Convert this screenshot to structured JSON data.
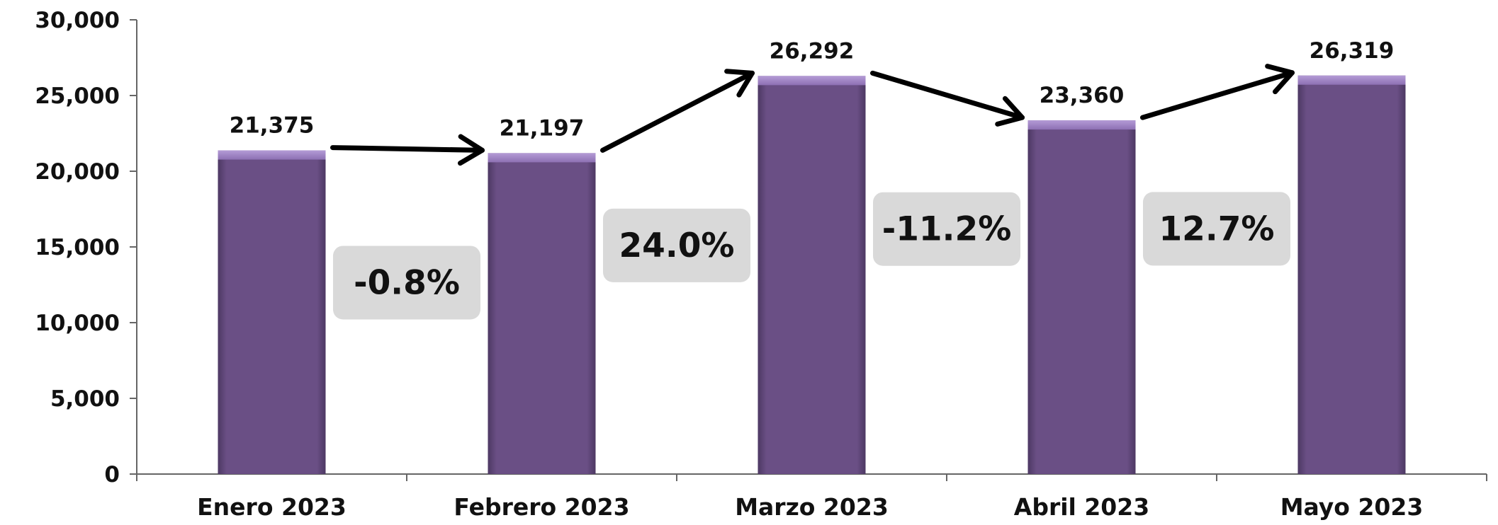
{
  "chart_data": {
    "type": "bar",
    "categories": [
      "Enero 2023",
      "Febrero 2023",
      "Marzo 2023",
      "Abril 2023",
      "Mayo 2023"
    ],
    "values": [
      21375,
      21197,
      26292,
      23360,
      26319
    ],
    "value_labels": [
      "21,375",
      "21,197",
      "26,292",
      "23,360",
      "26,319"
    ],
    "changes": [
      "-0.8%",
      "24.0%",
      "-11.2%",
      "12.7%"
    ],
    "yticks": [
      0,
      5000,
      10000,
      15000,
      20000,
      25000,
      30000
    ],
    "ytick_labels": [
      "0",
      "5,000",
      "10,000",
      "15,000",
      "20,000",
      "25,000",
      "30,000"
    ],
    "ylim": [
      0,
      30000
    ],
    "grid": false,
    "legend": "none",
    "title": "",
    "xlabel": "",
    "ylabel": "",
    "colors": {
      "bar": "#6a4f85",
      "bar_top": "#9a7fbf",
      "axis": "#666666",
      "change_box": "#d9d9d9",
      "arrow": "#000000"
    }
  }
}
